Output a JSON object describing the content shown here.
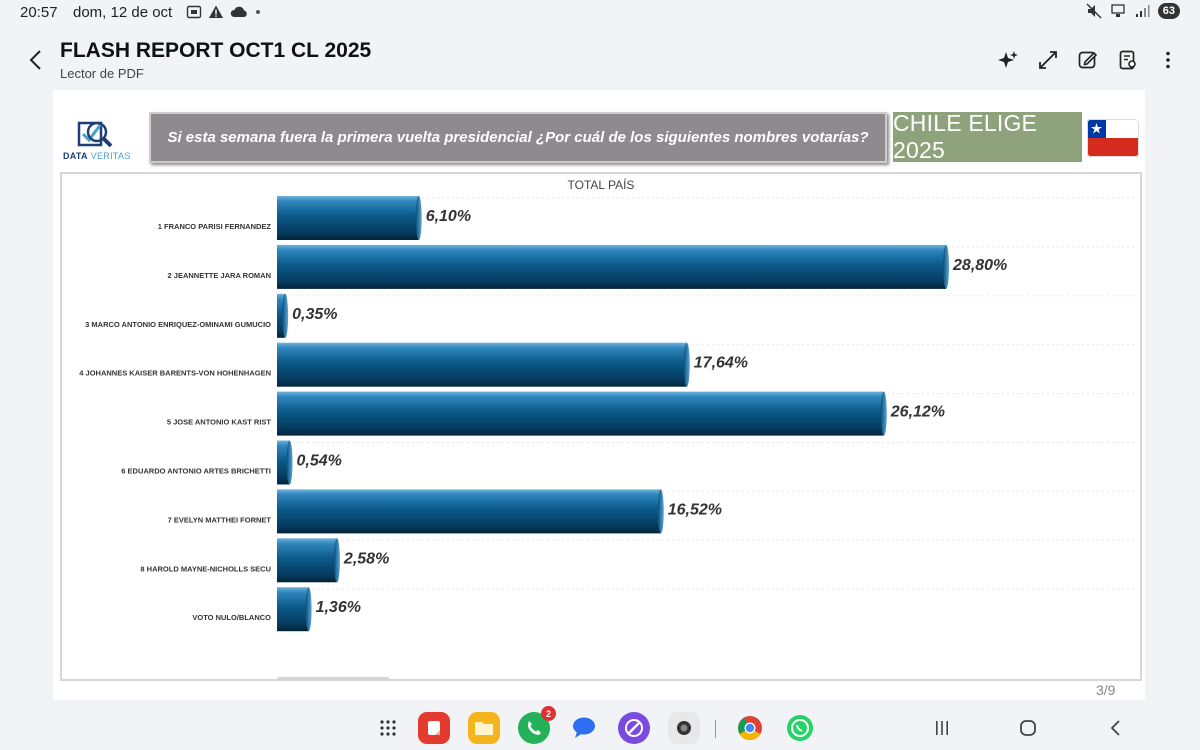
{
  "status": {
    "time": "20:57",
    "date": "dom, 12 de oct",
    "battery": "63"
  },
  "app": {
    "title": "FLASH REPORT OCT1 CL 2025",
    "subtitle": "Lector de PDF"
  },
  "toolbar": {
    "icons": [
      "sparkle-icon",
      "expand-icon",
      "edit-icon",
      "doc-search-icon",
      "more-icon"
    ]
  },
  "page": {
    "logo_main": "DATA",
    "logo_accent": "VERITAS",
    "question": "Si esta semana fuera la primera vuelta presidencial ¿Por cuál de los siguientes nombres votarías?",
    "brand": "CHILE ELIGE 2025",
    "indicator": "3/9"
  },
  "chart_data": {
    "type": "bar",
    "orientation": "horizontal",
    "title": "TOTAL PAÍS",
    "categories": [
      "1 FRANCO PARISI FERNANDEZ",
      "2 JEANNETTE JARA ROMAN",
      "3 MARCO ANTONIO ENRIQUEZ-OMINAMI GUMUCIO",
      "4 JOHANNES KAISER BARENTS-VON HOHENHAGEN",
      "5 JOSE ANTONIO KAST RIST",
      "6 EDUARDO ANTONIO ARTES BRICHETTI",
      "7 EVELYN MATTHEI FORNET",
      "8 HAROLD MAYNE-NICHOLLS SECU",
      "VOTO NULO/BLANCO"
    ],
    "values": [
      6.1,
      28.8,
      0.35,
      17.64,
      26.12,
      0.54,
      16.52,
      2.58,
      1.36
    ],
    "labels": [
      "6,10%",
      "28,80%",
      "0,35%",
      "17,64%",
      "26,12%",
      "0,54%",
      "16,52%",
      "2,58%",
      "1,36%"
    ],
    "bar_color": "#0b5a8a"
  },
  "dock": {
    "badge_count": "2",
    "apps": [
      "apps-grid-icon",
      "notes-app-icon",
      "files-app-icon",
      "phone-app-icon",
      "messages-app-icon",
      "browser-app-icon",
      "camera-app-icon",
      "chrome-app-icon",
      "whatsapp-app-icon"
    ],
    "nav": [
      "recents-nav-icon",
      "home-nav-icon",
      "back-nav-icon"
    ]
  }
}
